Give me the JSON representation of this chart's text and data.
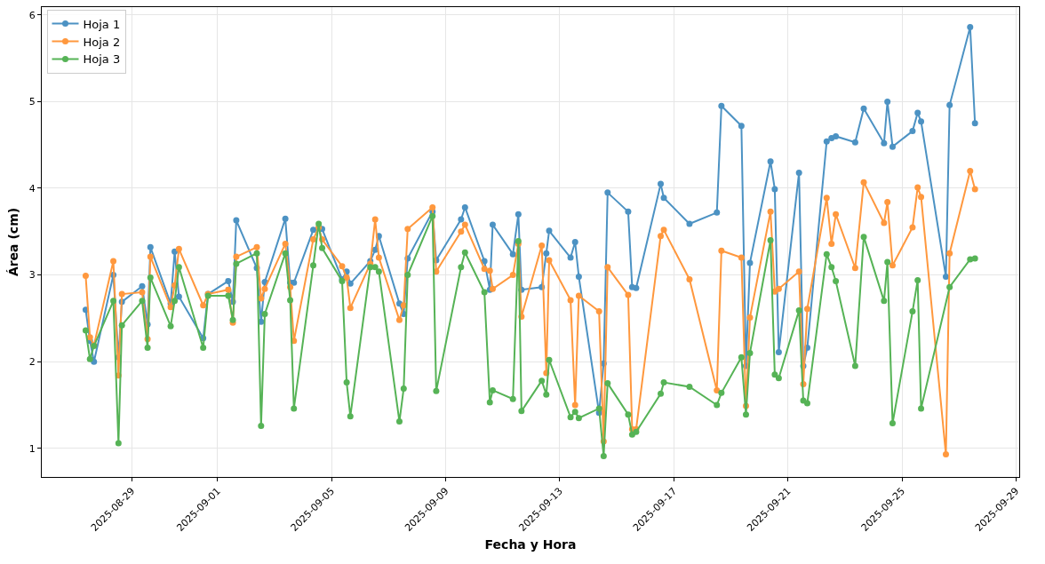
{
  "chart_data": {
    "type": "line",
    "xlabel": "Fecha y Hora",
    "ylabel": "Área (cm)",
    "x": [
      "2025-08-27T09:07",
      "2025-08-27T12:43",
      "2025-08-27T16:05",
      "2025-08-28T08:24",
      "2025-08-28T12:43",
      "2025-08-28T15:36",
      "2025-08-29T08:38",
      "2025-08-29T13:12",
      "2025-08-29T15:36",
      "2025-08-30T08:38",
      "2025-08-30T12:00",
      "2025-08-30T15:36",
      "2025-08-31T12:00",
      "2025-08-31T16:05",
      "2025-09-01T09:07",
      "2025-09-01T12:58",
      "2025-09-01T15:50",
      "2025-09-02T09:07",
      "2025-09-02T12:43",
      "2025-09-02T15:50",
      "2025-09-03T09:07",
      "2025-09-03T13:12",
      "2025-09-03T16:19",
      "2025-09-04T08:38",
      "2025-09-04T13:12",
      "2025-09-04T16:05",
      "2025-09-05T08:53",
      "2025-09-05T12:43",
      "2025-09-05T15:50",
      "2025-09-06T08:38",
      "2025-09-06T12:43",
      "2025-09-06T15:50",
      "2025-09-07T09:07",
      "2025-09-07T12:43",
      "2025-09-07T16:05",
      "2025-09-08T12:58",
      "2025-09-08T16:05",
      "2025-09-09T12:58",
      "2025-09-09T16:19",
      "2025-09-10T08:38",
      "2025-09-10T13:12",
      "2025-09-10T15:36",
      "2025-09-11T08:38",
      "2025-09-11T13:12",
      "2025-09-11T15:50",
      "2025-09-12T08:53",
      "2025-09-12T12:43",
      "2025-09-12T15:07",
      "2025-09-13T09:07",
      "2025-09-13T12:58",
      "2025-09-13T16:05",
      "2025-09-14T09:07",
      "2025-09-14T12:58",
      "2025-09-14T16:19",
      "2025-09-15T09:36",
      "2025-09-15T12:58",
      "2025-09-15T16:19",
      "2025-09-16T12:58",
      "2025-09-16T15:36",
      "2025-09-17T13:12",
      "2025-09-18T12:14",
      "2025-09-18T16:05",
      "2025-09-19T08:53",
      "2025-09-19T12:43",
      "2025-09-19T16:05",
      "2025-09-20T09:22",
      "2025-09-20T12:58",
      "2025-09-20T16:19",
      "2025-09-21T09:22",
      "2025-09-21T12:58",
      "2025-09-21T16:19",
      "2025-09-22T08:38",
      "2025-09-22T12:43",
      "2025-09-22T16:19",
      "2025-09-23T08:38",
      "2025-09-23T15:50",
      "2025-09-24T08:53",
      "2025-09-24T11:46",
      "2025-09-24T16:05",
      "2025-09-25T08:53",
      "2025-09-25T13:12",
      "2025-09-25T16:05",
      "2025-09-26T12:58",
      "2025-09-26T16:05",
      "2025-09-27T09:22",
      "2025-09-27T13:26"
    ],
    "series": [
      {
        "name": "Hoja 1",
        "color": "#4c92c3",
        "values": [
          2.6,
          2.24,
          2.0,
          3.0,
          2.05,
          2.69,
          2.87,
          2.43,
          3.32,
          2.67,
          3.27,
          2.75,
          2.27,
          2.78,
          2.93,
          2.69,
          3.63,
          3.08,
          2.46,
          2.92,
          3.65,
          2.91,
          2.91,
          3.52,
          3.54,
          3.53,
          2.95,
          3.04,
          2.9,
          3.16,
          3.29,
          3.45,
          2.67,
          2.55,
          3.19,
          3.73,
          3.17,
          3.64,
          3.78,
          3.16,
          2.83,
          3.58,
          3.24,
          3.7,
          2.83,
          2.86,
          3.25,
          3.51,
          3.2,
          3.38,
          2.98,
          1.41,
          1.98,
          3.95,
          3.73,
          2.86,
          2.85,
          4.05,
          3.89,
          3.59,
          3.72,
          4.95,
          4.72,
          1.95,
          3.14,
          4.31,
          3.99,
          2.11,
          4.18,
          1.95,
          2.16,
          4.54,
          4.58,
          4.6,
          4.53,
          4.92,
          4.52,
          5.0,
          4.48,
          4.66,
          4.87,
          4.77,
          2.98,
          4.96,
          5.86,
          4.75
        ]
      },
      {
        "name": "Hoja 2",
        "color": "#ff983e",
        "values": [
          2.99,
          2.28,
          2.19,
          3.16,
          1.84,
          2.78,
          2.8,
          2.26,
          3.21,
          2.63,
          2.88,
          3.3,
          2.65,
          2.78,
          2.83,
          2.45,
          3.21,
          3.32,
          2.73,
          2.84,
          3.36,
          2.86,
          2.24,
          3.41,
          3.55,
          3.41,
          3.1,
          2.97,
          2.62,
          3.13,
          3.64,
          3.2,
          2.48,
          2.65,
          3.53,
          3.78,
          3.04,
          3.5,
          3.58,
          3.07,
          3.05,
          2.84,
          3.0,
          3.36,
          2.52,
          3.34,
          1.87,
          3.17,
          2.71,
          1.5,
          2.76,
          2.58,
          1.08,
          3.09,
          2.77,
          1.22,
          1.22,
          3.45,
          3.52,
          2.95,
          1.67,
          3.28,
          3.2,
          1.49,
          2.51,
          3.73,
          2.81,
          2.84,
          3.04,
          1.74,
          2.61,
          3.89,
          3.36,
          3.7,
          3.08,
          4.07,
          3.6,
          3.84,
          3.11,
          3.55,
          4.01,
          3.9,
          0.93,
          3.25,
          4.2,
          3.99
        ]
      },
      {
        "name": "Hoja 3",
        "color": "#56b356",
        "x": [
          "2025-08-27T09:07",
          "2025-08-27T12:43",
          "2025-08-27T16:05",
          "2025-08-28T08:24",
          "2025-08-28T12:43",
          "2025-08-28T15:36",
          "2025-08-29T08:38",
          "2025-08-29T13:12",
          "2025-08-29T15:36",
          "2025-08-30T08:38",
          "2025-08-30T12:00",
          "2025-08-30T15:36",
          "2025-08-31T12:00",
          "2025-08-31T16:05",
          "2025-09-01T09:07",
          "2025-09-01T12:58",
          "2025-09-01T15:50",
          "2025-09-02T09:07",
          "2025-09-02T12:43",
          "2025-09-02T15:50",
          "2025-09-03T09:07",
          "2025-09-03T13:12",
          "2025-09-03T16:19",
          "2025-09-04T08:38",
          "2025-09-04T13:12",
          "2025-09-04T16:05",
          "2025-09-05T08:53",
          "2025-09-05T12:43",
          "2025-09-05T15:50",
          "2025-09-06T08:38",
          "2025-09-06T12:43",
          "2025-09-06T15:50",
          "2025-09-07T09:07",
          "2025-09-07T12:43",
          "2025-09-07T16:05",
          "2025-09-08T12:58",
          "2025-09-08T16:05",
          "2025-09-09T12:58",
          "2025-09-09T16:19",
          "2025-09-10T08:38",
          "2025-09-10T13:12",
          "2025-09-10T15:36",
          "2025-09-11T08:38",
          "2025-09-11T13:12",
          "2025-09-11T15:50",
          "2025-09-12T08:53",
          "2025-09-12T12:43",
          "2025-09-12T15:07",
          "2025-09-13T09:07",
          "2025-09-13T12:58",
          "2025-09-13T16:05",
          "2025-09-14T09:07",
          "2025-09-14T12:58",
          "2025-09-14T16:19",
          "2025-09-15T09:36",
          "2025-09-15T12:58",
          "2025-09-15T16:19",
          "2025-09-16T12:58",
          "2025-09-16T15:36",
          "2025-09-17T13:12",
          "2025-09-18T12:14",
          "2025-09-18T16:05",
          "2025-09-19T08:53",
          "2025-09-19T12:43",
          "2025-09-19T16:05",
          "2025-09-20T09:22",
          "2025-09-20T12:58",
          "2025-09-20T16:19",
          "2025-09-21T09:22",
          "2025-09-21T12:58",
          "2025-09-21T16:19",
          "2025-09-22T08:38",
          "2025-09-22T12:43",
          "2025-09-22T16:19",
          "2025-09-23T08:38",
          "2025-09-23T15:50",
          "2025-09-24T08:53",
          "2025-09-24T11:46",
          "2025-09-24T16:05",
          "2025-09-25T08:53",
          "2025-09-25T13:12",
          "2025-09-25T16:05",
          "2025-09-26T16:05",
          "2025-09-27T09:22",
          "2025-09-27T13:26"
        ],
        "values": [
          2.36,
          2.03,
          2.18,
          2.7,
          1.06,
          2.42,
          2.7,
          2.16,
          2.97,
          2.41,
          2.7,
          3.09,
          2.16,
          2.76,
          2.76,
          2.48,
          3.13,
          3.25,
          1.26,
          2.55,
          3.25,
          2.71,
          1.46,
          3.11,
          3.59,
          3.31,
          2.93,
          1.76,
          1.37,
          3.09,
          3.09,
          3.04,
          1.31,
          1.69,
          3.0,
          3.68,
          1.66,
          3.09,
          3.26,
          2.8,
          1.53,
          1.67,
          1.57,
          3.39,
          1.43,
          1.78,
          1.62,
          2.02,
          1.36,
          1.42,
          1.35,
          1.46,
          0.91,
          1.75,
          1.39,
          1.16,
          1.19,
          1.63,
          1.76,
          1.71,
          1.5,
          1.64,
          2.05,
          1.39,
          2.1,
          3.4,
          1.85,
          1.81,
          2.59,
          1.55,
          1.52,
          3.24,
          3.09,
          2.93,
          1.95,
          3.44,
          2.7,
          3.15,
          1.29,
          2.58,
          2.94,
          1.46,
          2.86,
          3.18,
          3.19
        ]
      }
    ],
    "xlim": [
      "2025-08-25T20:10",
      "2025-09-29T02:40"
    ],
    "xticks": [
      "2025-08-29",
      "2025-09-01",
      "2025-09-05",
      "2025-09-09",
      "2025-09-13",
      "2025-09-17",
      "2025-09-21",
      "2025-09-25",
      "2025-09-29"
    ],
    "ylim": [
      0.67,
      6.09
    ],
    "yticks": [
      1,
      2,
      3,
      4,
      5,
      6
    ],
    "grid": true,
    "legend": "top left",
    "marker": "circle",
    "line_style": "solid"
  }
}
